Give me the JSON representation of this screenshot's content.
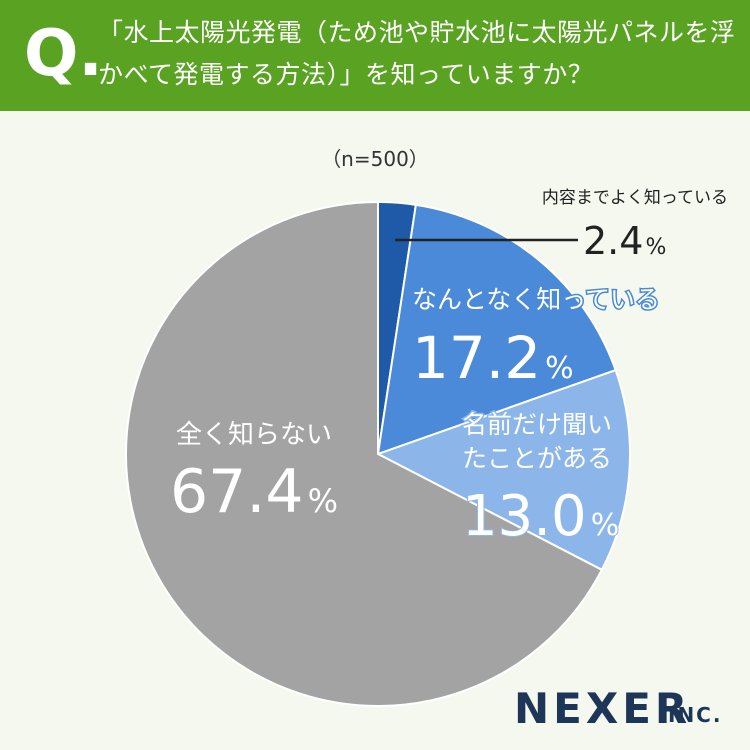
{
  "question": {
    "mark": "Q.",
    "text": "「水上太陽光発電（ため池や貯水池に太陽光パネルを浮かべて発電する方法）」を知っていますか？"
  },
  "colors": {
    "header_bg": "#5aa222",
    "page_bg": "#f4f8ef"
  },
  "brand": {
    "name": "NEXER",
    "suffix": "INC."
  },
  "chart_data": {
    "type": "pie",
    "sample_size": "（n=500）",
    "unit": "%",
    "start_angle": "12 o'clock, clockwise",
    "slices": [
      {
        "label": "内容までよく知っている",
        "value": 2.4,
        "display": "2.4",
        "color": "#1e5aa8"
      },
      {
        "label": "なんとなく知っている",
        "value": 17.2,
        "display": "17.2",
        "color": "#4a8ad8"
      },
      {
        "label": "名前だけ聞いたことがある",
        "value": 13.0,
        "display": "13.0",
        "color": "#8cb6ea"
      },
      {
        "label": "全く知らない",
        "value": 67.4,
        "display": "67.4",
        "color": "#a3a3a3"
      }
    ]
  }
}
